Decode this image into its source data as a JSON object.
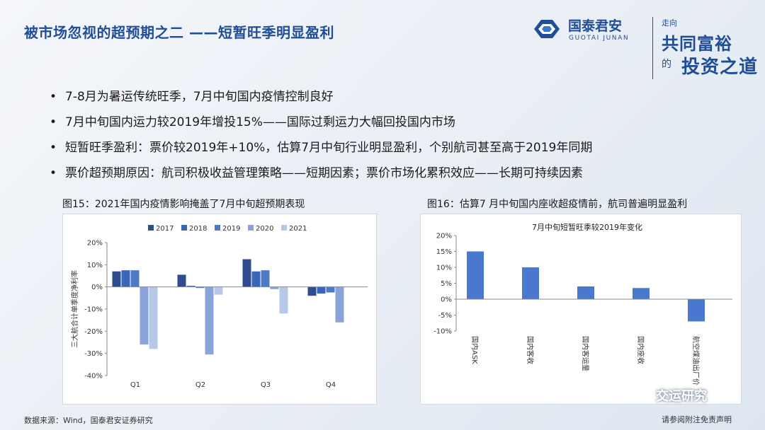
{
  "slide": {
    "title": "被市场忽视的超预期之二 ——短暂旺季明显盈利",
    "bullets": [
      "7-8月为暑运传统旺季，7月中旬国内疫情控制良好",
      "7月中旬国内运力较2019年增投15%——国际过剩运力大幅回投国内市场",
      "短暂旺季盈利：票价较2019年+10%，估算7月中旬行业明显盈利，个别航司甚至高于2019年同期",
      "票价超预期原因：航司积极收益管理策略——短期因素；票价市场化累积效应——长期可持续因素"
    ],
    "bullet_symbol": "•",
    "source": "数据来源：Wind，国泰君安证券研究",
    "disclaimer": "请参阅附注免责声明"
  },
  "brand": {
    "name_cn": "国泰君安",
    "name_en": "GUOTAI JUNAN",
    "slogan_top": "走向",
    "slogan_main": "共同富裕",
    "slogan_de": "的",
    "slogan_end": "投资之道",
    "color": "#1f4e96"
  },
  "watermark": {
    "text": "交运研究",
    "icon": "wechat-icon"
  },
  "figures": {
    "fig15": {
      "caption": "图15：2021年国内疫情影响掩盖了7月中旬超预期表现"
    },
    "fig16": {
      "caption": "图16：估算7 月中旬国内座收超疫情前，航司普遍明显盈利"
    }
  },
  "chart_data": [
    {
      "type": "bar",
      "title": "",
      "ylabel": "三大航合计单季度净利率",
      "categories": [
        "Q1",
        "Q2",
        "Q3",
        "Q4"
      ],
      "ylim": [
        -40,
        20
      ],
      "yticks": [
        -40,
        -30,
        -20,
        -10,
        0,
        10,
        20
      ],
      "yticklabels": [
        "-40%",
        "-30%",
        "-20%",
        "-10%",
        "0%",
        "10%",
        "20%"
      ],
      "legend_position": "top",
      "grid": false,
      "series": [
        {
          "name": "2017",
          "color": "#2e4d8f",
          "values": [
            7,
            5.5,
            12.5,
            -4
          ]
        },
        {
          "name": "2018",
          "color": "#3a66b8",
          "values": [
            7.5,
            0.5,
            7,
            -3
          ]
        },
        {
          "name": "2019",
          "color": "#4d79c7",
          "values": [
            7.5,
            -0.5,
            7.5,
            -2.5
          ]
        },
        {
          "name": "2020",
          "color": "#8aa3d8",
          "values": [
            -26,
            -30.5,
            -1,
            -16
          ]
        },
        {
          "name": "2021",
          "color": "#b8c8e8",
          "values": [
            -28,
            -3.5,
            -12,
            null
          ]
        }
      ]
    },
    {
      "type": "bar",
      "title": "7月中旬短暂旺季较2019年变化",
      "xlabel": "",
      "ylabel": "",
      "categories": [
        "国内ASK",
        "国内客收",
        "国内客运量",
        "国内座收",
        "航空煤油出厂价"
      ],
      "values": [
        15,
        10,
        4,
        3.5,
        -7
      ],
      "ylim": [
        -10,
        20
      ],
      "yticks": [
        -10,
        -5,
        0,
        5,
        10,
        15,
        20
      ],
      "yticklabels": [
        "-10%",
        "-5%",
        "0%",
        "5%",
        "10%",
        "15%",
        "20%"
      ],
      "grid": false,
      "color": "#4a78cf"
    }
  ]
}
